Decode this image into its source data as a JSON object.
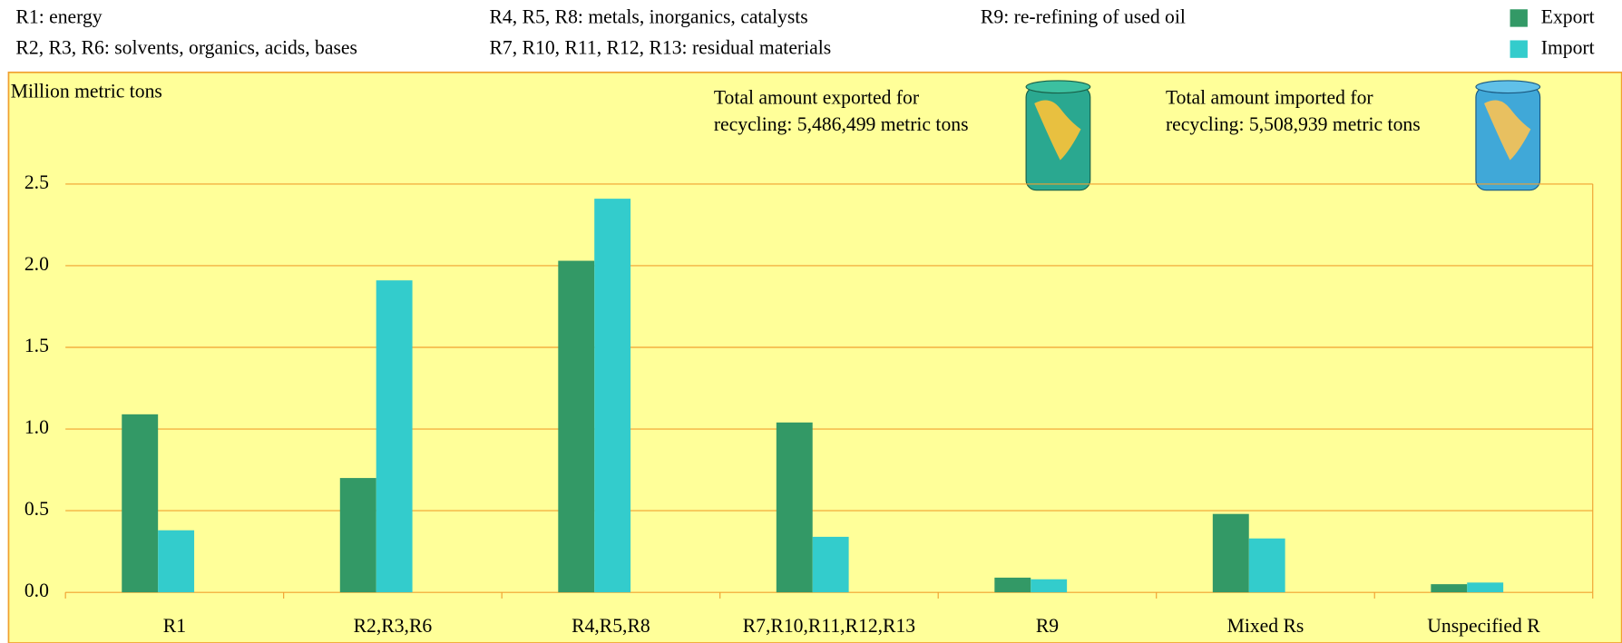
{
  "chart_data": {
    "type": "bar",
    "notes": [
      "R1: energy",
      "R2, R3, R6: solvents, organics, acids, bases",
      "R4, R5, R8: metals, inorganics, catalysts",
      "R7, R10, R11, R12, R13: residual materials",
      "R9: re-refining of used oil"
    ],
    "y_label": "Million metric tons",
    "annotations": [
      [
        "Total amount exported for",
        "recycling: 5,486,499 metric tons"
      ],
      [
        "Total amount imported for",
        "recycling: 5,508,939 metric tons"
      ]
    ],
    "categories": [
      "R1",
      "R2,R3,R6",
      "R4,R5,R8",
      "R7,R10,R11,R12,R13",
      "R9",
      "Mixed Rs",
      "Unspecified R"
    ],
    "series": [
      {
        "name": "Export",
        "color": "#339966",
        "values": [
          1.09,
          0.7,
          2.03,
          1.04,
          0.09,
          0.48,
          0.05
        ]
      },
      {
        "name": "Import",
        "color": "#33cccc",
        "values": [
          0.38,
          1.91,
          2.41,
          0.34,
          0.08,
          0.33,
          0.06
        ]
      }
    ],
    "ylim": [
      0,
      2.5
    ],
    "yticks": [
      {
        "value": 0,
        "label": "0.0"
      },
      0.5,
      {
        "value": 1,
        "label": "1.0"
      },
      1.5,
      {
        "value": 2,
        "label": "2.0"
      },
      2.5
    ],
    "grid": true
  }
}
